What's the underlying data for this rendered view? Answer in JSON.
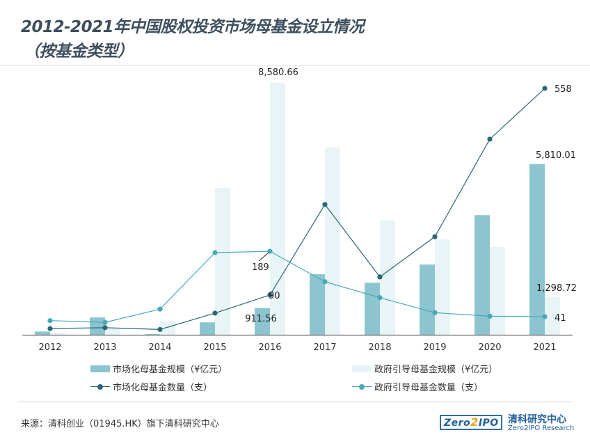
{
  "title_line1": "2012-2021年中国股权投资市场母基金设立情况",
  "title_line2": "（按基金类型）",
  "source": "来源：清科创业（01945.HK）旗下清科研究中心",
  "logo": {
    "box_text_a": "Zero",
    "box_text_b": "2",
    "box_text_c": "IPO",
    "name_cn": "清科研究中心",
    "name_en": "Zero2IPO Research"
  },
  "colors": {
    "market_bar": "#8cc5cf",
    "gov_bar": "#e8f4f6",
    "market_line": "#2b6777",
    "gov_line": "#4aa9b8"
  },
  "chart_data": {
    "type": "bar",
    "categories": [
      "2012",
      "2013",
      "2014",
      "2015",
      "2016",
      "2017",
      "2018",
      "2019",
      "2020",
      "2021"
    ],
    "series": [
      {
        "name": "市场化母基金规模（¥亿元）",
        "type": "bar",
        "axis": "left",
        "values": [
          110,
          590,
          20,
          420,
          911.56,
          2060,
          1770,
          2390,
          4070,
          5810.01
        ]
      },
      {
        "name": "政府引导母基金规模（¥亿元）",
        "type": "bar",
        "axis": "left",
        "values": [
          70,
          200,
          480,
          5000,
          8580.66,
          6380,
          3900,
          3250,
          2990,
          1298.72
        ]
      },
      {
        "name": "市场化母基金数量（支）",
        "type": "line",
        "axis": "right",
        "values": [
          14,
          16,
          12,
          49,
          90,
          295,
          131,
          222,
          443,
          558
        ]
      },
      {
        "name": "政府引导母基金数量（支）",
        "type": "line",
        "axis": "right",
        "values": [
          32,
          28,
          58,
          186,
          189,
          120,
          84,
          50,
          42,
          41
        ]
      }
    ],
    "data_labels": [
      {
        "series": 0,
        "index": 4,
        "text": "911.56"
      },
      {
        "series": 0,
        "index": 9,
        "text": "5,810.01"
      },
      {
        "series": 1,
        "index": 4,
        "text": "8,580.66"
      },
      {
        "series": 1,
        "index": 9,
        "text": "1,298.72"
      },
      {
        "series": 2,
        "index": 4,
        "text": "90"
      },
      {
        "series": 2,
        "index": 9,
        "text": "558"
      },
      {
        "series": 3,
        "index": 4,
        "text": "189"
      },
      {
        "series": 3,
        "index": 9,
        "text": "41"
      }
    ],
    "ylim_left": [
      0,
      8600
    ],
    "ylim_right": [
      0,
      600
    ],
    "grid": false,
    "legend": "bottom"
  }
}
